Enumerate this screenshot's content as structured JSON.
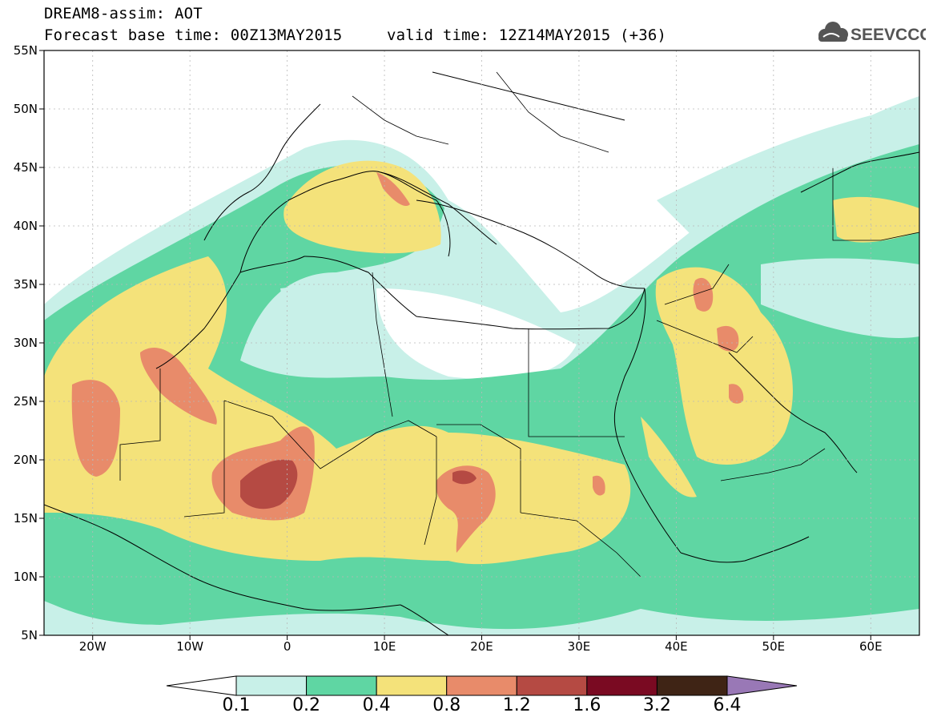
{
  "header": {
    "title_line1": "DREAM8-assim: AOT",
    "title_line2": "Forecast base time: 00Z13MAY2015",
    "valid_time": "valid time: 12Z14MAY2015 (+36)",
    "logo_text": "SEEVCCC"
  },
  "map": {
    "variable": "AOT",
    "lon_range": [
      -25,
      65
    ],
    "lat_range": [
      5,
      55
    ],
    "lat_ticks": [
      "5N",
      "10N",
      "15N",
      "20N",
      "25N",
      "30N",
      "35N",
      "40N",
      "45N",
      "50N",
      "55N"
    ],
    "lon_ticks": [
      "20W",
      "10W",
      "0",
      "10E",
      "20E",
      "30E",
      "40E",
      "50E",
      "60E"
    ],
    "dust_maxima": [
      {
        "lon": 0,
        "lat": 18,
        "level": "1.2-1.6"
      },
      {
        "lon": 18.5,
        "lat": 18,
        "level": "1.2-1.6"
      },
      {
        "lon": 11.5,
        "lat": 43,
        "level": "0.8-1.2"
      },
      {
        "lon": 43.5,
        "lat": 33.5,
        "level": "0.8-1.2"
      },
      {
        "lon": -20,
        "lat": 22,
        "level": "0.8-1.2"
      },
      {
        "lon": 46,
        "lat": 30,
        "level": "0.8-1.2"
      },
      {
        "lon": -11,
        "lat": 27.5,
        "level": "0.8-1.2"
      }
    ]
  },
  "colorbar": {
    "labels": [
      "0.1",
      "0.2",
      "0.4",
      "0.8",
      "1.2",
      "1.6",
      "3.2",
      "6.4"
    ],
    "colors": [
      "#c8f0e8",
      "#5fd6a3",
      "#f4e27a",
      "#e88b6a",
      "#b54a43",
      "#7a0a22",
      "#3f2415",
      "#9978b6"
    ],
    "low_end_color": "#ffffff"
  },
  "palette": {
    "c01": "#c8f0e8",
    "c02": "#5fd6a3",
    "c04": "#f4e27a",
    "c08": "#e88b6a",
    "c12": "#b54a43"
  }
}
